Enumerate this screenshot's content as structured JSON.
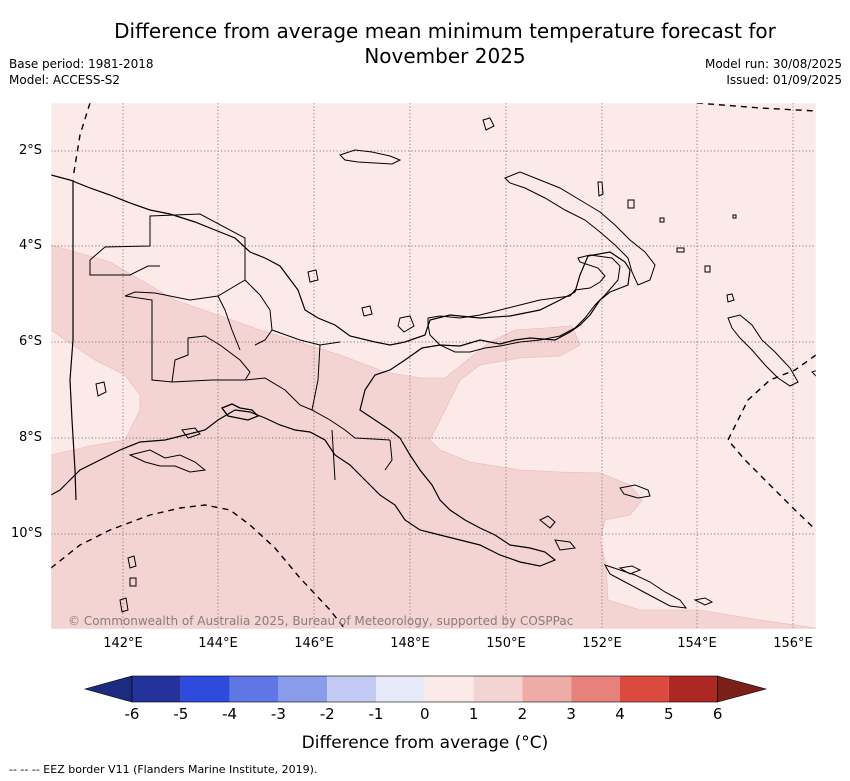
{
  "title": "Difference from average mean minimum temperature forecast for\nNovember 2025",
  "meta_left": [
    "Base period: 1981-2018",
    "Model: ACCESS-S2"
  ],
  "meta_right": [
    "Model run: 30/08/2025",
    "Issued: 01/09/2025"
  ],
  "map": {
    "lat_labels": [
      "2°S",
      "4°S",
      "6°S",
      "8°S",
      "10°S"
    ],
    "lon_labels": [
      "142°E",
      "144°E",
      "146°E",
      "148°E",
      "150°E",
      "152°E",
      "154°E",
      "156°E"
    ],
    "credit": "© Commonwealth of Australia 2025, Bureau of Meteorology, supported by COSPPac",
    "background_color": "#fbeae8",
    "warmer_color": "#f4d4d2",
    "land_outline_color": "#000000"
  },
  "colorbar": {
    "ticks": [
      "-6",
      "-5",
      "-4",
      "-3",
      "-2",
      "-1",
      "0",
      "1",
      "2",
      "3",
      "4",
      "5",
      "6"
    ],
    "colors": [
      "#24329c",
      "#2e4bdd",
      "#5f76e4",
      "#8a9ce9",
      "#c3cbf4",
      "#e7ebf9",
      "#fbeae8",
      "#f4d4d2",
      "#efaba6",
      "#e6827b",
      "#db4a3f",
      "#ad2823"
    ],
    "under_color": "#1c2a80",
    "over_color": "#7a1f1a",
    "label": "Difference from average (°C)"
  },
  "footnote": "-- -- -- EEZ border V11 (Flanders Marine Institute, 2019)."
}
